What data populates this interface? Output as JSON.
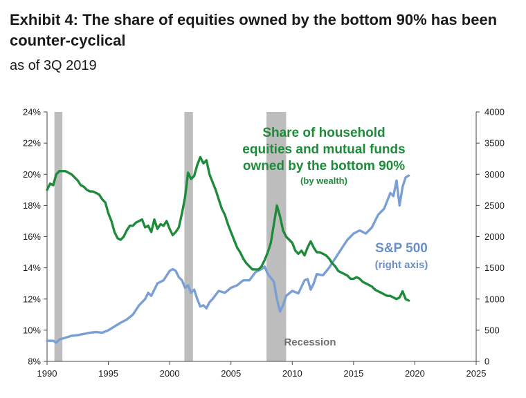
{
  "header": {
    "title": "Exhibit 4: The share of equities owned by the bottom 90% has been counter-cyclical",
    "subtitle": "as of 3Q 2019"
  },
  "colors": {
    "share_line": "#1e8b3a",
    "sp500_line": "#7a9fd4",
    "recession_band": "#bdbdbd",
    "axis": "#444444"
  },
  "chart_data": {
    "type": "line",
    "title": "Exhibit 4: The share of equities owned by the bottom 90% has been counter-cyclical",
    "subtitle": "as of 3Q 2019",
    "xlim": [
      1990,
      2025
    ],
    "x_ticks": [
      1990,
      1995,
      2000,
      2005,
      2010,
      2015,
      2020,
      2025
    ],
    "ylim_left": [
      8,
      24
    ],
    "y_ticks_left": [
      "8%",
      "10%",
      "12%",
      "14%",
      "16%",
      "18%",
      "20%",
      "22%",
      "24%"
    ],
    "ylim_right": [
      0,
      4000
    ],
    "y_ticks_right": [
      "0",
      "500",
      "1000",
      "1500",
      "2000",
      "2500",
      "3000",
      "3500",
      "4000"
    ],
    "grid": false,
    "recessions": [
      [
        1990.6,
        1991.25
      ],
      [
        2001.2,
        2001.9
      ],
      [
        2007.9,
        2009.5
      ]
    ],
    "recession_label": "Recession",
    "series": [
      {
        "name": "Share of household equities and mutual funds owned by the bottom 90% (by wealth)",
        "axis": "left",
        "x": [
          1990.0,
          1990.25,
          1990.5,
          1990.75,
          1991.0,
          1991.25,
          1991.5,
          1991.75,
          1992.0,
          1992.25,
          1992.5,
          1992.75,
          1993.0,
          1993.25,
          1993.5,
          1993.75,
          1994.0,
          1994.25,
          1994.5,
          1994.75,
          1995.0,
          1995.25,
          1995.5,
          1995.75,
          1996.0,
          1996.25,
          1996.5,
          1996.75,
          1997.0,
          1997.25,
          1997.5,
          1997.75,
          1998.0,
          1998.25,
          1998.5,
          1998.75,
          1999.0,
          1999.25,
          1999.5,
          1999.75,
          2000.0,
          2000.25,
          2000.5,
          2000.75,
          2001.0,
          2001.25,
          2001.5,
          2001.75,
          2002.0,
          2002.25,
          2002.5,
          2002.75,
          2003.0,
          2003.25,
          2003.5,
          2003.75,
          2004.0,
          2004.25,
          2004.5,
          2004.75,
          2005.0,
          2005.25,
          2005.5,
          2005.75,
          2006.0,
          2006.25,
          2006.5,
          2006.75,
          2007.0,
          2007.25,
          2007.5,
          2007.75,
          2008.0,
          2008.25,
          2008.5,
          2008.75,
          2009.0,
          2009.25,
          2009.5,
          2009.75,
          2010.0,
          2010.25,
          2010.5,
          2010.75,
          2011.0,
          2011.25,
          2011.5,
          2011.75,
          2012.0,
          2012.25,
          2012.5,
          2012.75,
          2013.0,
          2013.25,
          2013.5,
          2013.75,
          2014.0,
          2014.25,
          2014.5,
          2014.75,
          2015.0,
          2015.25,
          2015.5,
          2015.75,
          2016.0,
          2016.25,
          2016.5,
          2016.75,
          2017.0,
          2017.25,
          2017.5,
          2017.75,
          2018.0,
          2018.25,
          2018.5,
          2018.75,
          2019.0,
          2019.25,
          2019.5
        ],
        "values": [
          19.0,
          19.4,
          19.3,
          20.0,
          20.2,
          20.2,
          20.2,
          20.1,
          20.0,
          19.8,
          19.6,
          19.3,
          19.2,
          19.0,
          18.9,
          18.9,
          18.8,
          18.7,
          18.4,
          18.2,
          17.5,
          17.0,
          16.3,
          15.9,
          15.8,
          16.0,
          16.4,
          16.7,
          16.7,
          16.9,
          17.0,
          17.1,
          16.6,
          16.7,
          16.3,
          17.1,
          16.5,
          16.8,
          16.7,
          17.0,
          16.5,
          16.1,
          16.3,
          16.6,
          17.5,
          18.5,
          20.1,
          19.7,
          19.9,
          20.6,
          21.1,
          20.7,
          20.9,
          20.0,
          19.5,
          19.0,
          18.4,
          17.8,
          17.4,
          16.8,
          16.3,
          15.8,
          15.3,
          15.0,
          14.6,
          14.3,
          14.1,
          13.9,
          13.9,
          13.9,
          14.1,
          14.5,
          15.0,
          15.6,
          16.8,
          18.0,
          17.3,
          16.4,
          16.0,
          15.8,
          15.6,
          15.1,
          14.9,
          15.1,
          14.8,
          15.3,
          15.7,
          15.3,
          15.0,
          15.0,
          14.9,
          14.8,
          14.6,
          14.3,
          14.1,
          13.8,
          13.7,
          13.6,
          13.5,
          13.3,
          13.3,
          13.4,
          13.3,
          13.1,
          13.0,
          12.9,
          12.8,
          12.6,
          12.5,
          12.4,
          12.3,
          12.2,
          12.2,
          12.1,
          12.0,
          12.1,
          12.5,
          12.0,
          11.9
        ]
      },
      {
        "name": "S&P 500",
        "axis": "right",
        "x": [
          1990.0,
          1990.5,
          1990.75,
          1991.0,
          1991.5,
          1992.0,
          1992.5,
          1993.0,
          1993.5,
          1994.0,
          1994.5,
          1995.0,
          1995.5,
          1996.0,
          1996.5,
          1997.0,
          1997.5,
          1998.0,
          1998.25,
          1998.5,
          1998.75,
          1999.0,
          1999.5,
          2000.0,
          2000.25,
          2000.5,
          2000.75,
          2001.0,
          2001.25,
          2001.5,
          2001.75,
          2002.0,
          2002.25,
          2002.5,
          2002.75,
          2003.0,
          2003.25,
          2003.5,
          2004.0,
          2004.5,
          2005.0,
          2005.5,
          2006.0,
          2006.5,
          2007.0,
          2007.5,
          2007.75,
          2008.0,
          2008.5,
          2008.75,
          2009.0,
          2009.25,
          2009.5,
          2010.0,
          2010.5,
          2011.0,
          2011.25,
          2011.5,
          2011.75,
          2012.0,
          2012.5,
          2013.0,
          2013.5,
          2014.0,
          2014.5,
          2015.0,
          2015.5,
          2016.0,
          2016.5,
          2017.0,
          2017.5,
          2018.0,
          2018.25,
          2018.5,
          2018.75,
          2019.0,
          2019.25,
          2019.5
        ],
        "values": [
          330,
          330,
          300,
          350,
          380,
          410,
          420,
          440,
          460,
          470,
          460,
          500,
          560,
          620,
          670,
          750,
          900,
          1000,
          1100,
          1050,
          1150,
          1250,
          1300,
          1450,
          1480,
          1450,
          1350,
          1300,
          1180,
          1220,
          1100,
          1150,
          1000,
          880,
          900,
          850,
          950,
          1000,
          1130,
          1100,
          1180,
          1220,
          1300,
          1300,
          1430,
          1480,
          1520,
          1400,
          1280,
          1000,
          800,
          900,
          1050,
          1130,
          1090,
          1300,
          1320,
          1150,
          1250,
          1400,
          1380,
          1500,
          1650,
          1800,
          1950,
          2050,
          2100,
          2050,
          2150,
          2350,
          2450,
          2700,
          2650,
          2900,
          2500,
          2800,
          2950,
          2980
        ]
      }
    ]
  },
  "annotations": {
    "share_label": {
      "lines": [
        "Share of household",
        "equities and mutual funds",
        "owned by the bottom 90%"
      ],
      "sub": "(by wealth)"
    },
    "sp_label": {
      "lines": [
        "S&P 500"
      ],
      "sub": "(right axis)"
    },
    "recession": "Recession"
  }
}
